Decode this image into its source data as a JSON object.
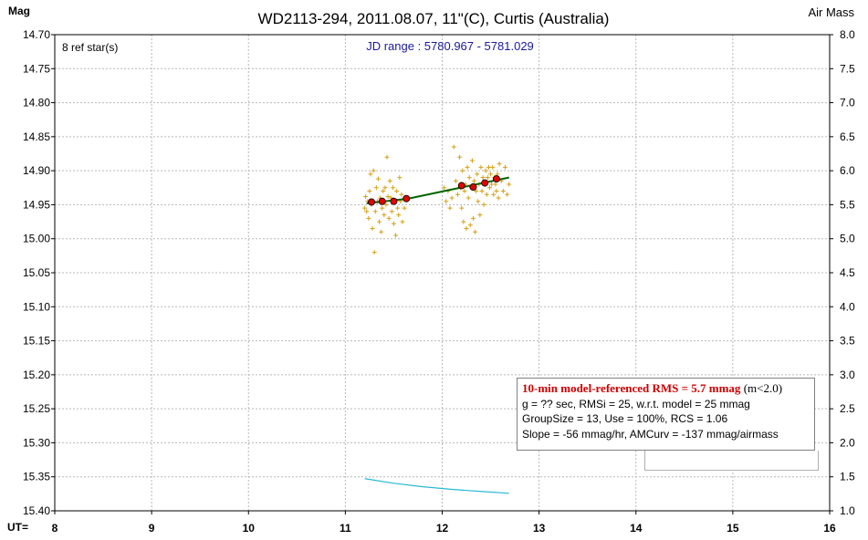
{
  "chart_data": {
    "type": "scatter",
    "title": "WD2113-294, 2011.08.07, 11\"(C), Curtis (Australia)",
    "left_axis_label": "Mag",
    "right_axis_label": "Air Mass",
    "x_axis_label": "UT=",
    "ref_stars_label": "8 ref star(s)",
    "jd_range_label": "JD range : 5780.967 - 5781.029",
    "xlim": [
      8,
      16
    ],
    "ylim_mag": [
      14.7,
      15.4
    ],
    "ylim_airmass": [
      8.0,
      1.0
    ],
    "x_ticks": [
      "8",
      "9",
      "10",
      "11",
      "12",
      "13",
      "14",
      "15",
      "16"
    ],
    "y_ticks_mag": [
      "14.70",
      "14.75",
      "14.80",
      "14.85",
      "14.90",
      "14.95",
      "15.00",
      "15.05",
      "15.10",
      "15.15",
      "15.20",
      "15.25",
      "15.30",
      "15.35",
      "15.40"
    ],
    "y_ticks_airmass": [
      "8.0",
      "7.5",
      "7.0",
      "6.5",
      "6.0",
      "5.5",
      "5.0",
      "4.5",
      "4.0",
      "3.5",
      "3.0",
      "2.5",
      "2.0",
      "1.5",
      "1.0"
    ],
    "grid": true,
    "series": [
      {
        "kind": "raw-points",
        "color": "#d4a017",
        "points": [
          [
            11.2,
            14.955
          ],
          [
            11.21,
            14.938
          ],
          [
            11.22,
            14.96
          ],
          [
            11.23,
            14.945
          ],
          [
            11.24,
            14.97
          ],
          [
            11.25,
            14.93
          ],
          [
            11.26,
            14.905
          ],
          [
            11.27,
            14.95
          ],
          [
            11.28,
            14.985
          ],
          [
            11.29,
            14.9
          ],
          [
            11.3,
            15.02
          ],
          [
            11.31,
            14.96
          ],
          [
            11.32,
            14.925
          ],
          [
            11.33,
            14.945
          ],
          [
            11.34,
            14.912
          ],
          [
            11.35,
            14.975
          ],
          [
            11.36,
            14.94
          ],
          [
            11.37,
            14.99
          ],
          [
            11.38,
            14.955
          ],
          [
            11.39,
            14.93
          ],
          [
            11.4,
            14.965
          ],
          [
            11.41,
            14.925
          ],
          [
            11.42,
            14.95
          ],
          [
            11.43,
            14.88
          ],
          [
            11.44,
            14.938
          ],
          [
            11.45,
            14.97
          ],
          [
            11.46,
            14.915
          ],
          [
            11.47,
            14.94
          ],
          [
            11.48,
            14.96
          ],
          [
            11.49,
            14.925
          ],
          [
            11.5,
            14.978
          ],
          [
            11.51,
            14.945
          ],
          [
            11.52,
            14.995
          ],
          [
            11.53,
            14.93
          ],
          [
            11.54,
            14.955
          ],
          [
            11.55,
            14.965
          ],
          [
            11.56,
            14.91
          ],
          [
            11.57,
            14.945
          ],
          [
            11.58,
            14.935
          ],
          [
            11.59,
            14.975
          ],
          [
            11.61,
            14.955
          ],
          [
            11.63,
            14.94
          ],
          [
            12.02,
            14.925
          ],
          [
            12.04,
            14.945
          ],
          [
            12.06,
            14.93
          ],
          [
            12.08,
            14.955
          ],
          [
            12.1,
            14.94
          ],
          [
            12.12,
            14.865
          ],
          [
            12.14,
            14.915
          ],
          [
            12.16,
            14.935
          ],
          [
            12.18,
            14.88
          ],
          [
            12.19,
            14.925
          ],
          [
            12.2,
            14.955
          ],
          [
            12.21,
            14.9
          ],
          [
            12.22,
            14.975
          ],
          [
            12.23,
            14.93
          ],
          [
            12.24,
            14.92
          ],
          [
            12.25,
            14.985
          ],
          [
            12.26,
            14.895
          ],
          [
            12.27,
            14.94
          ],
          [
            12.28,
            14.91
          ],
          [
            12.29,
            14.98
          ],
          [
            12.3,
            14.925
          ],
          [
            12.31,
            14.885
          ],
          [
            12.32,
            14.97
          ],
          [
            12.33,
            14.915
          ],
          [
            12.34,
            14.99
          ],
          [
            12.35,
            14.93
          ],
          [
            12.36,
            14.905
          ],
          [
            12.37,
            14.945
          ],
          [
            12.38,
            14.92
          ],
          [
            12.39,
            14.965
          ],
          [
            12.4,
            14.895
          ],
          [
            12.41,
            14.93
          ],
          [
            12.42,
            14.91
          ],
          [
            12.43,
            14.95
          ],
          [
            12.44,
            14.92
          ],
          [
            12.45,
            14.9
          ],
          [
            12.46,
            14.935
          ],
          [
            12.47,
            14.91
          ],
          [
            12.48,
            14.895
          ],
          [
            12.49,
            14.925
          ],
          [
            12.5,
            14.905
          ],
          [
            12.51,
            14.92
          ],
          [
            12.52,
            14.895
          ],
          [
            12.53,
            14.935
          ],
          [
            12.54,
            14.91
          ],
          [
            12.55,
            14.92
          ],
          [
            12.56,
            14.93
          ],
          [
            12.57,
            14.905
          ],
          [
            12.58,
            14.94
          ],
          [
            12.59,
            14.89
          ],
          [
            12.61,
            14.915
          ],
          [
            12.63,
            14.93
          ],
          [
            12.65,
            14.895
          ],
          [
            12.67,
            14.935
          ],
          [
            12.69,
            14.92
          ]
        ]
      },
      {
        "kind": "binned-means",
        "color": "#e00000",
        "points": [
          [
            11.27,
            14.946
          ],
          [
            11.38,
            14.945
          ],
          [
            11.5,
            14.945
          ],
          [
            11.63,
            14.941
          ],
          [
            12.2,
            14.922
          ],
          [
            12.32,
            14.924
          ],
          [
            12.44,
            14.918
          ],
          [
            12.56,
            14.912
          ]
        ]
      },
      {
        "kind": "model-fit",
        "color": "#006400",
        "points": [
          [
            11.22,
            14.948
          ],
          [
            11.65,
            14.941
          ],
          [
            12.12,
            14.927
          ],
          [
            12.69,
            14.91
          ]
        ]
      },
      {
        "kind": "air-mass",
        "axis": "airmass",
        "color": "#29b9d4",
        "points": [
          [
            11.2,
            1.473
          ],
          [
            11.5,
            1.405
          ],
          [
            11.8,
            1.354
          ],
          [
            12.1,
            1.315
          ],
          [
            12.4,
            1.285
          ],
          [
            12.69,
            1.257
          ]
        ]
      }
    ]
  },
  "info": {
    "rms_label": "10-min model-referenced RMS = 5.7 mmag",
    "rms_tail": " (m<2.0)",
    "line2": "g = ?? sec, RMSi = 25, w.r.t. model = 25 mmag",
    "line3": "GroupSize = 13, Use = 100%, RCS = 1.06",
    "line4": "Slope = -56 mmag/hr, AMCurv = -137 mmag/airmass"
  }
}
